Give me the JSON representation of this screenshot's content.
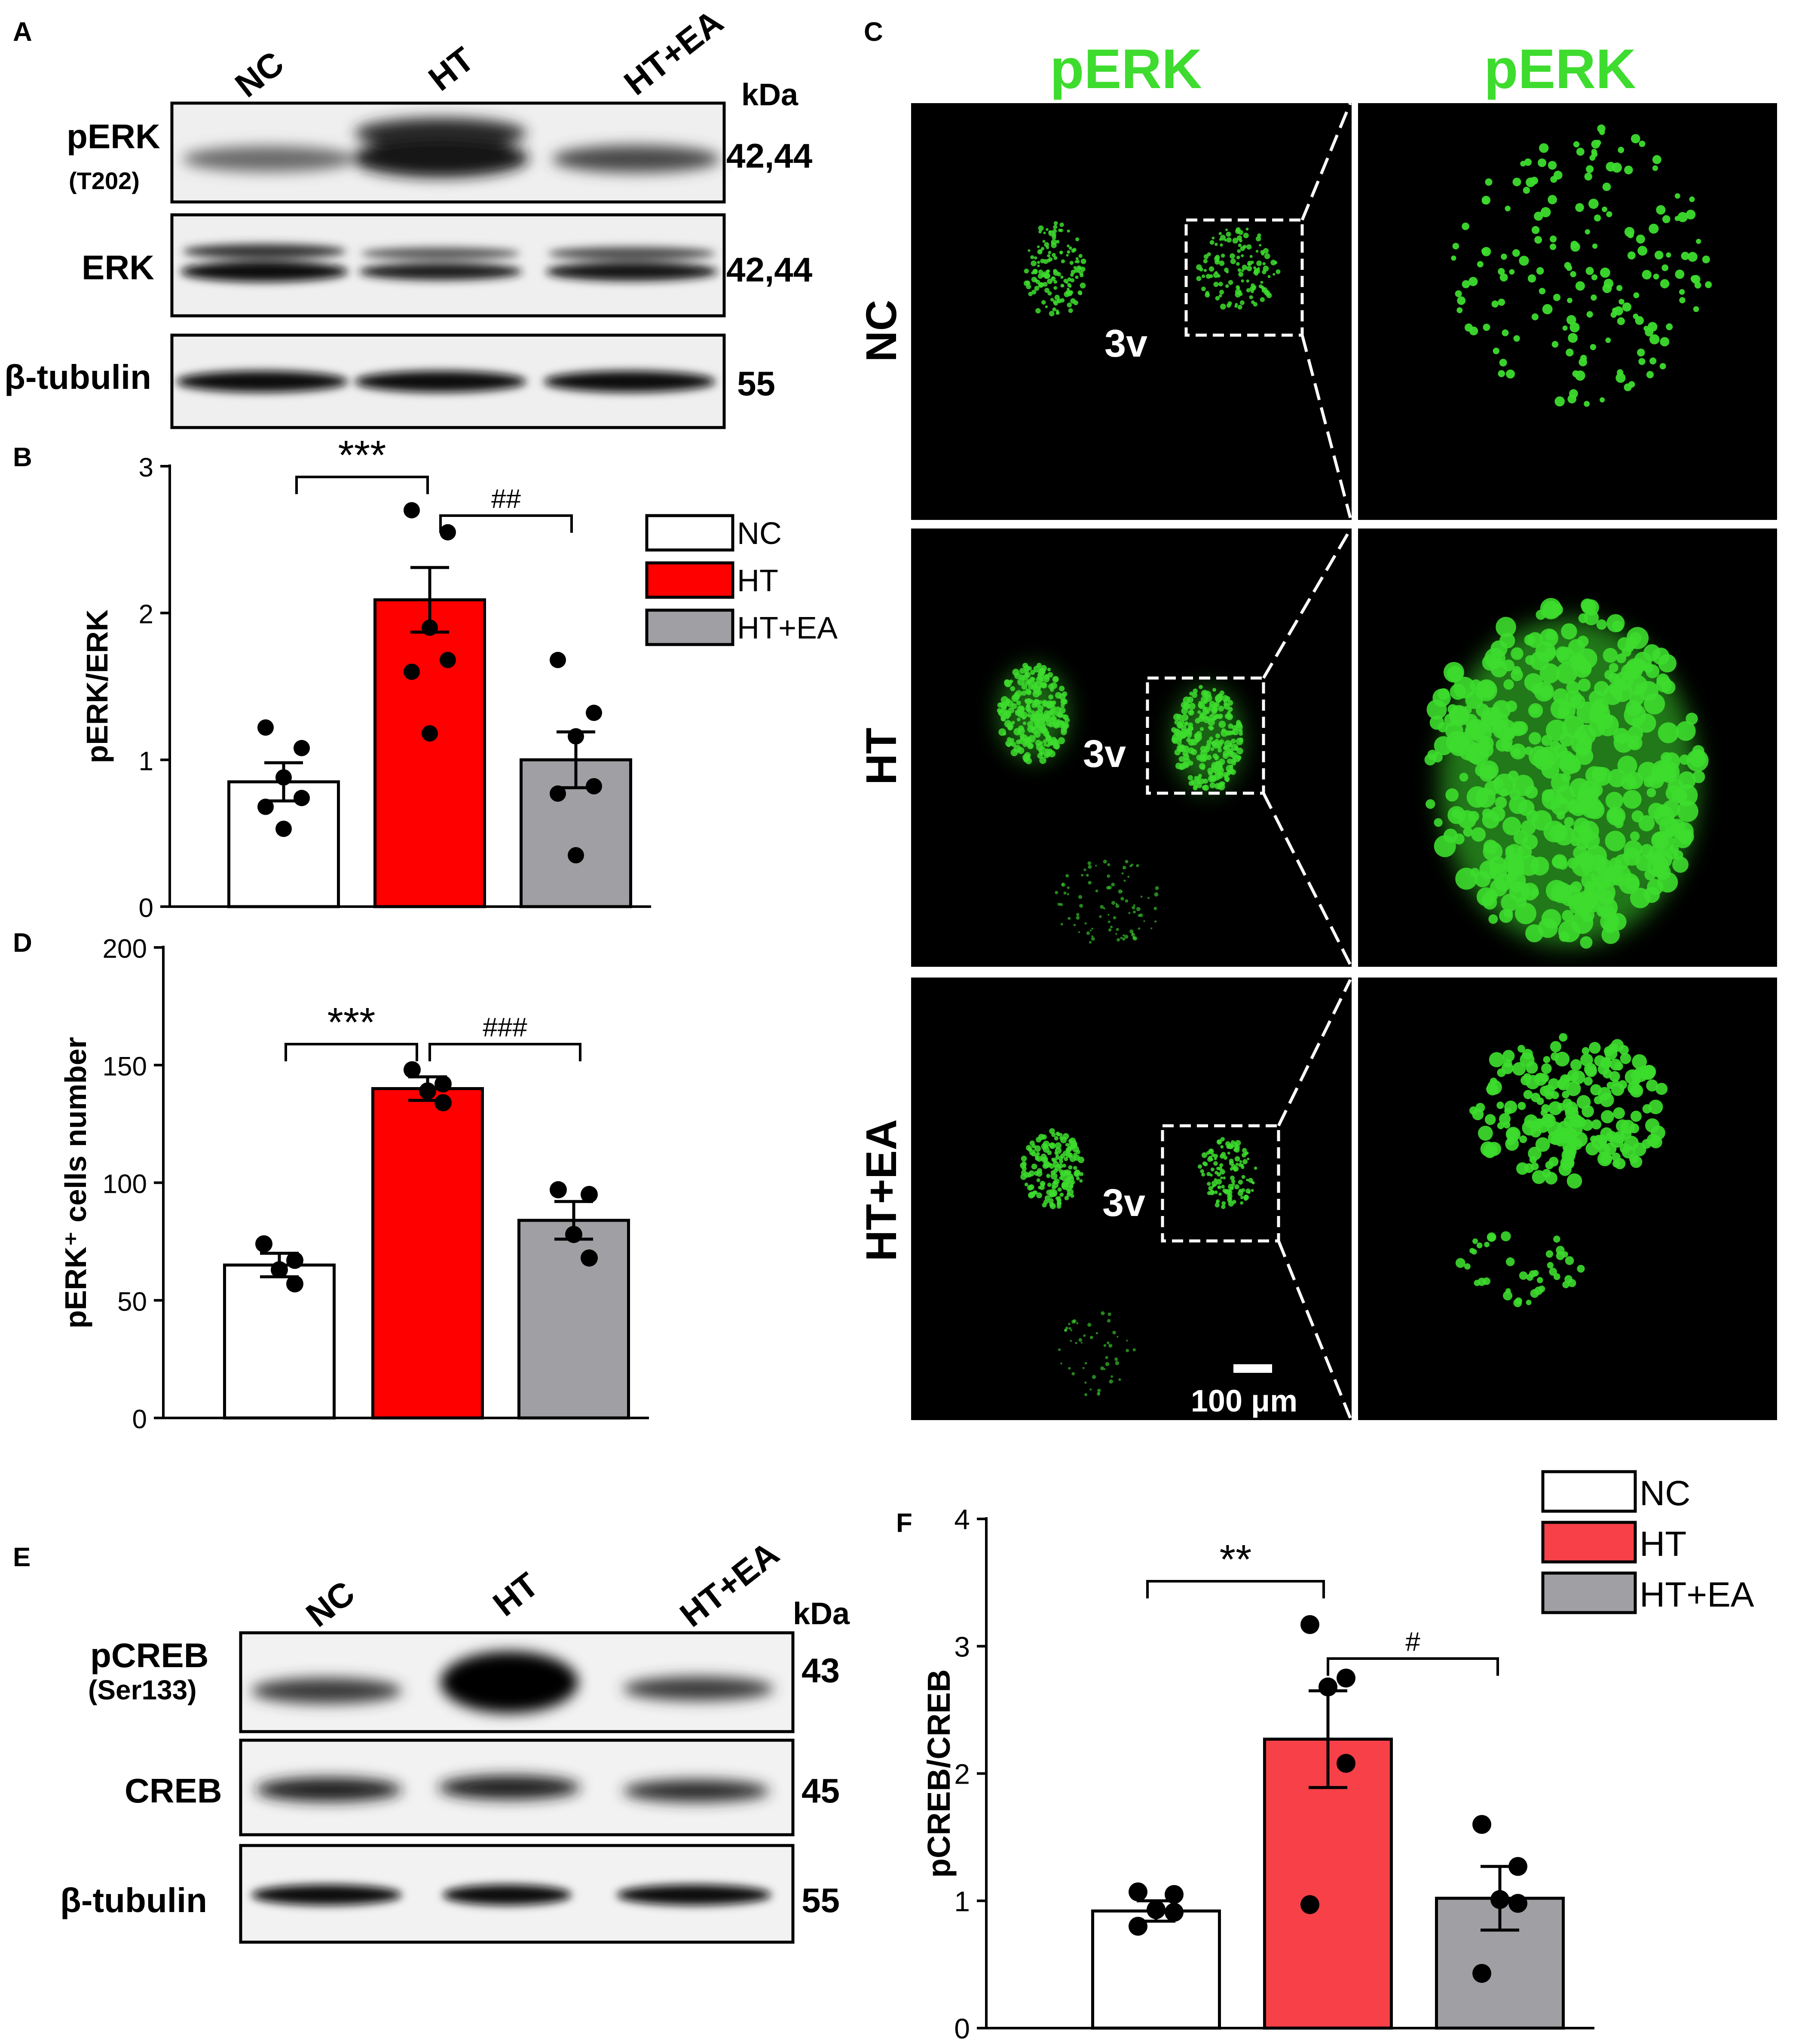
{
  "panels": {
    "A": {
      "letter": "A",
      "lanes": [
        "NC",
        "HT",
        "HT+EA"
      ],
      "unit": "kDa",
      "blots": [
        {
          "label": "pERK",
          "sublabel": "(T202)",
          "kda": "42,44"
        },
        {
          "label": "ERK",
          "sublabel": "",
          "kda": "42,44"
        },
        {
          "label": "β-tubulin",
          "sublabel": "",
          "kda": "55"
        }
      ]
    },
    "C": {
      "letter": "C",
      "channel_label": "pERK",
      "rows": [
        "NC",
        "HT",
        "HT+EA"
      ],
      "region_label": "3v",
      "scale_bar": "100 μm"
    },
    "E": {
      "letter": "E",
      "lanes": [
        "NC",
        "HT",
        "HT+EA"
      ],
      "unit": "kDa",
      "blots": [
        {
          "label": "pCREB",
          "sublabel": "(Ser133)",
          "kda": "43"
        },
        {
          "label": "CREB",
          "sublabel": "",
          "kda": "45"
        },
        {
          "label": "β-tubulin",
          "sublabel": "",
          "kda": "55"
        }
      ]
    }
  },
  "colors": {
    "NC": "#ffffff",
    "HT": "#ff0000",
    "HT+EA": "#a0a0a4",
    "HT_F": "#f84048",
    "fluor": "#3ddc2e"
  },
  "chart_data": [
    {
      "letter": "B",
      "type": "bar",
      "categories": [
        "NC",
        "HT",
        "HT+EA"
      ],
      "values": [
        0.85,
        2.09,
        1.0
      ],
      "sem": [
        0.13,
        0.22,
        0.19
      ],
      "points": [
        [
          1.22,
          1.08,
          0.88,
          0.74,
          0.68,
          0.53
        ],
        [
          2.7,
          2.55,
          1.9,
          1.68,
          1.6,
          1.18
        ],
        [
          1.68,
          1.32,
          1.16,
          0.82,
          0.77,
          0.35
        ]
      ],
      "ylabel": "pERK/ERK",
      "ylim": [
        0,
        3
      ],
      "yticks": [
        0,
        1,
        2,
        3
      ],
      "legend": [
        "NC",
        "HT",
        "HT+EA"
      ],
      "significance": [
        {
          "from": "NC",
          "to": "HT",
          "label": "***"
        },
        {
          "from": "HT",
          "to": "HT+EA",
          "label": "##"
        }
      ]
    },
    {
      "letter": "D",
      "type": "bar",
      "categories": [
        "NC",
        "HT",
        "HT+EA"
      ],
      "values": [
        65,
        140,
        84
      ],
      "sem": [
        5,
        5,
        8
      ],
      "points": [
        [
          74,
          67,
          63,
          57
        ],
        [
          148,
          142,
          139,
          134
        ],
        [
          97,
          95,
          78,
          68
        ]
      ],
      "ylabel": "pERK⁺ cells number",
      "ylim": [
        0,
        200
      ],
      "yticks": [
        0,
        50,
        100,
        150,
        200
      ],
      "significance": [
        {
          "from": "NC",
          "to": "HT",
          "label": "***"
        },
        {
          "from": "HT",
          "to": "HT+EA",
          "label": "###"
        }
      ]
    },
    {
      "letter": "F",
      "type": "bar",
      "categories": [
        "NC",
        "HT",
        "HT+EA"
      ],
      "values": [
        0.92,
        2.27,
        1.02
      ],
      "sem": [
        0.08,
        0.38,
        0.25
      ],
      "points": [
        [
          1.07,
          1.05,
          0.93,
          0.91,
          0.8
        ],
        [
          3.17,
          2.75,
          2.68,
          2.08,
          0.97
        ],
        [
          1.6,
          1.27,
          1.01,
          0.98,
          0.43
        ]
      ],
      "ylabel": "pCREB/CREB",
      "ylim": [
        0,
        4
      ],
      "yticks": [
        0,
        1,
        2,
        3,
        4
      ],
      "legend": [
        "NC",
        "HT",
        "HT+EA"
      ],
      "significance": [
        {
          "from": "NC",
          "to": "HT",
          "label": "**"
        },
        {
          "from": "HT",
          "to": "HT+EA",
          "label": "#"
        }
      ]
    }
  ]
}
